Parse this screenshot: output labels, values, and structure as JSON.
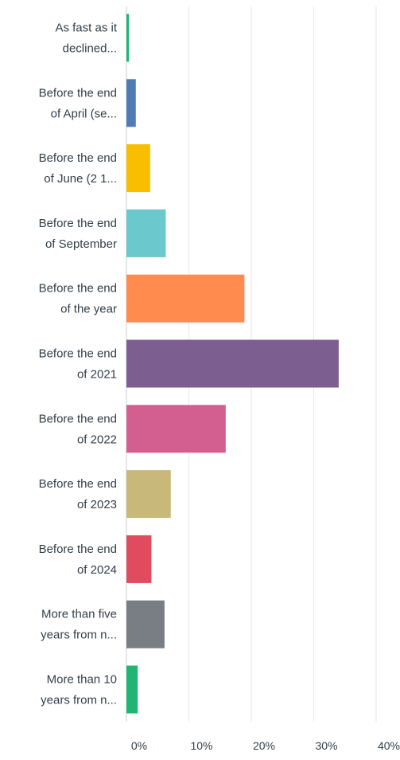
{
  "chart_data": {
    "type": "bar",
    "orientation": "horizontal",
    "categories": [
      [
        "As fast as it",
        "declined..."
      ],
      [
        "Before the end",
        "of April (se..."
      ],
      [
        "Before the end",
        "of June (2 1..."
      ],
      [
        "Before the end",
        "of September"
      ],
      [
        "Before the end",
        "of the year"
      ],
      [
        "Before the end",
        "of 2021"
      ],
      [
        "Before the end",
        "of 2022"
      ],
      [
        "Before the end",
        "of 2023"
      ],
      [
        "Before the end",
        "of 2024"
      ],
      [
        "More than five",
        "years from n..."
      ],
      [
        "More than 10",
        "years from n..."
      ]
    ],
    "values": [
      0.4,
      1.5,
      3.8,
      6.3,
      18.9,
      34.0,
      15.9,
      7.1,
      4.0,
      6.1,
      1.8
    ],
    "colors": [
      "#21b573",
      "#507cb6",
      "#f9be00",
      "#6bc8cd",
      "#ff8b4f",
      "#7d5e90",
      "#d25f90",
      "#c8b97b",
      "#e04b5f",
      "#787e84",
      "#21b573"
    ],
    "xlim": [
      0,
      40
    ],
    "xticks": [
      0,
      10,
      20,
      30,
      40
    ],
    "xtick_labels": [
      "0%",
      "10%",
      "20%",
      "30%",
      "40%"
    ],
    "grid": true
  }
}
